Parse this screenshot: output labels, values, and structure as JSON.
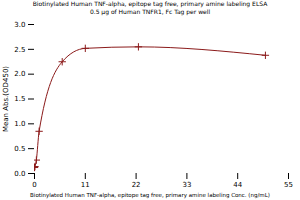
{
  "chart_data": {
    "type": "line",
    "title": "Biotinylated Human TNF-alpha, epitope tag free, primary amine labeling ELSA",
    "subtitle": "0.5 μg of Human TNFR1, Fc Tag per well",
    "xlabel": "Biotinylated Human TNF-alpha, epitope tag free, primary amine labeling Conc. (ng/mL)",
    "ylabel": "Mean Abs.(OD450)",
    "x": [
      0.0,
      0.1,
      0.4,
      1.0,
      6.0,
      11.0,
      22.5,
      50.0
    ],
    "series": [
      {
        "values": [
          0.12,
          0.14,
          0.27,
          0.85,
          2.25,
          2.52,
          2.55,
          2.38
        ],
        "color": "#8B1A1A",
        "marker": "plus"
      }
    ],
    "xlim": [
      0,
      55
    ],
    "ylim": [
      0.0,
      3.0
    ],
    "xticks": [
      0,
      11,
      22,
      33,
      44,
      55
    ],
    "yticks": [
      {
        "value": 0,
        "label": "0.0"
      },
      0.5,
      {
        "value": 1,
        "label": "1.0"
      },
      1.5,
      {
        "value": 2,
        "label": "2.0"
      },
      2.5,
      {
        "value": 3,
        "label": "3.0"
      }
    ],
    "grid": false
  }
}
